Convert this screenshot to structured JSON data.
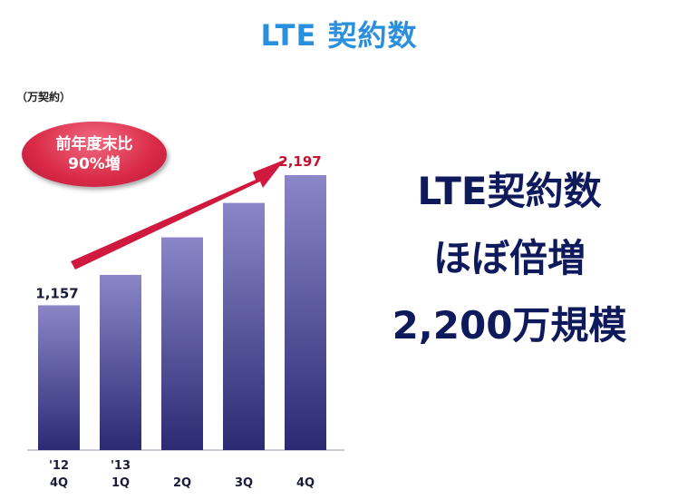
{
  "slide": {
    "title": "LTE 契約数"
  },
  "badge": {
    "line1": "前年度末比",
    "line2": "90%増"
  },
  "headline": {
    "line1": "LTE契約数",
    "line2": "ほぼ倍増",
    "line3": "2,200万規模"
  },
  "colors": {
    "title": "#2a8fdc",
    "bar_top": "#8a86c8",
    "bar_bottom": "#2b2a72",
    "arrow": "#d0193f",
    "highlight_label": "#c8102e",
    "headline": "#0f1a5c"
  },
  "chart_data": {
    "type": "bar",
    "ylabel": "（万契約）",
    "categories": [
      [
        "'12",
        "4Q"
      ],
      [
        "'13",
        "1Q"
      ],
      [
        "",
        "2Q"
      ],
      [
        "",
        "3Q"
      ],
      [
        "",
        "4Q"
      ]
    ],
    "values": [
      1157,
      1400,
      1700,
      1975,
      2197
    ],
    "data_labels": [
      "1,157",
      null,
      null,
      null,
      "2,197"
    ],
    "ylim": [
      0,
      2400
    ],
    "grid": false,
    "legend": "none"
  }
}
